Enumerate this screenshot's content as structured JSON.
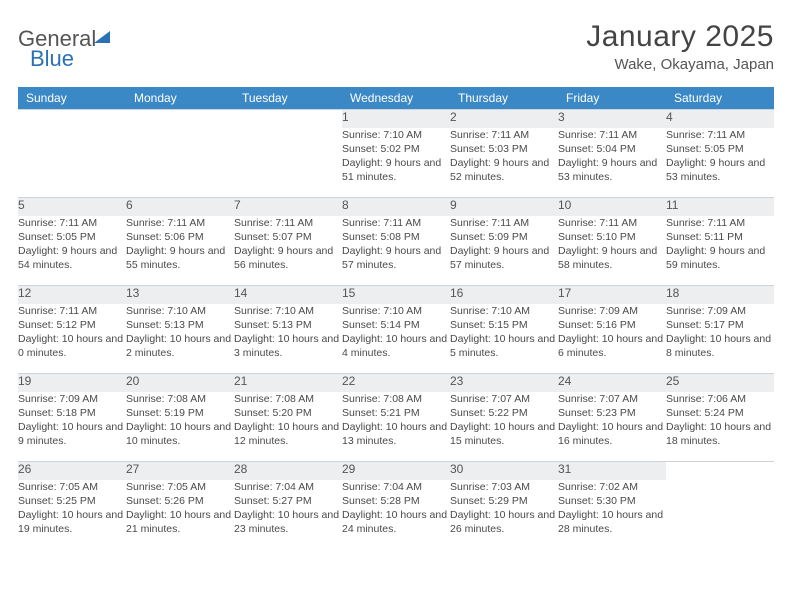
{
  "brand": {
    "word1": "General",
    "word2": "Blue"
  },
  "title": "January 2025",
  "location": "Wake, Okayama, Japan",
  "columns": [
    "Sunday",
    "Monday",
    "Tuesday",
    "Wednesday",
    "Thursday",
    "Friday",
    "Saturday"
  ],
  "style": {
    "header_bg": "#3b88c7",
    "header_fg": "#ffffff",
    "daynum_bg": "#eceef0",
    "text_color": "#4a4a4a",
    "title_fontsize": 30,
    "location_fontsize": 15,
    "header_fontsize": 12,
    "cell_fontsize": 10.5
  },
  "weeks": [
    [
      null,
      null,
      null,
      {
        "n": "1",
        "sr": "7:10 AM",
        "ss": "5:02 PM",
        "dl": "9 hours and 51 minutes."
      },
      {
        "n": "2",
        "sr": "7:11 AM",
        "ss": "5:03 PM",
        "dl": "9 hours and 52 minutes."
      },
      {
        "n": "3",
        "sr": "7:11 AM",
        "ss": "5:04 PM",
        "dl": "9 hours and 53 minutes."
      },
      {
        "n": "4",
        "sr": "7:11 AM",
        "ss": "5:05 PM",
        "dl": "9 hours and 53 minutes."
      }
    ],
    [
      {
        "n": "5",
        "sr": "7:11 AM",
        "ss": "5:05 PM",
        "dl": "9 hours and 54 minutes."
      },
      {
        "n": "6",
        "sr": "7:11 AM",
        "ss": "5:06 PM",
        "dl": "9 hours and 55 minutes."
      },
      {
        "n": "7",
        "sr": "7:11 AM",
        "ss": "5:07 PM",
        "dl": "9 hours and 56 minutes."
      },
      {
        "n": "8",
        "sr": "7:11 AM",
        "ss": "5:08 PM",
        "dl": "9 hours and 57 minutes."
      },
      {
        "n": "9",
        "sr": "7:11 AM",
        "ss": "5:09 PM",
        "dl": "9 hours and 57 minutes."
      },
      {
        "n": "10",
        "sr": "7:11 AM",
        "ss": "5:10 PM",
        "dl": "9 hours and 58 minutes."
      },
      {
        "n": "11",
        "sr": "7:11 AM",
        "ss": "5:11 PM",
        "dl": "9 hours and 59 minutes."
      }
    ],
    [
      {
        "n": "12",
        "sr": "7:11 AM",
        "ss": "5:12 PM",
        "dl": "10 hours and 0 minutes."
      },
      {
        "n": "13",
        "sr": "7:10 AM",
        "ss": "5:13 PM",
        "dl": "10 hours and 2 minutes."
      },
      {
        "n": "14",
        "sr": "7:10 AM",
        "ss": "5:13 PM",
        "dl": "10 hours and 3 minutes."
      },
      {
        "n": "15",
        "sr": "7:10 AM",
        "ss": "5:14 PM",
        "dl": "10 hours and 4 minutes."
      },
      {
        "n": "16",
        "sr": "7:10 AM",
        "ss": "5:15 PM",
        "dl": "10 hours and 5 minutes."
      },
      {
        "n": "17",
        "sr": "7:09 AM",
        "ss": "5:16 PM",
        "dl": "10 hours and 6 minutes."
      },
      {
        "n": "18",
        "sr": "7:09 AM",
        "ss": "5:17 PM",
        "dl": "10 hours and 8 minutes."
      }
    ],
    [
      {
        "n": "19",
        "sr": "7:09 AM",
        "ss": "5:18 PM",
        "dl": "10 hours and 9 minutes."
      },
      {
        "n": "20",
        "sr": "7:08 AM",
        "ss": "5:19 PM",
        "dl": "10 hours and 10 minutes."
      },
      {
        "n": "21",
        "sr": "7:08 AM",
        "ss": "5:20 PM",
        "dl": "10 hours and 12 minutes."
      },
      {
        "n": "22",
        "sr": "7:08 AM",
        "ss": "5:21 PM",
        "dl": "10 hours and 13 minutes."
      },
      {
        "n": "23",
        "sr": "7:07 AM",
        "ss": "5:22 PM",
        "dl": "10 hours and 15 minutes."
      },
      {
        "n": "24",
        "sr": "7:07 AM",
        "ss": "5:23 PM",
        "dl": "10 hours and 16 minutes."
      },
      {
        "n": "25",
        "sr": "7:06 AM",
        "ss": "5:24 PM",
        "dl": "10 hours and 18 minutes."
      }
    ],
    [
      {
        "n": "26",
        "sr": "7:05 AM",
        "ss": "5:25 PM",
        "dl": "10 hours and 19 minutes."
      },
      {
        "n": "27",
        "sr": "7:05 AM",
        "ss": "5:26 PM",
        "dl": "10 hours and 21 minutes."
      },
      {
        "n": "28",
        "sr": "7:04 AM",
        "ss": "5:27 PM",
        "dl": "10 hours and 23 minutes."
      },
      {
        "n": "29",
        "sr": "7:04 AM",
        "ss": "5:28 PM",
        "dl": "10 hours and 24 minutes."
      },
      {
        "n": "30",
        "sr": "7:03 AM",
        "ss": "5:29 PM",
        "dl": "10 hours and 26 minutes."
      },
      {
        "n": "31",
        "sr": "7:02 AM",
        "ss": "5:30 PM",
        "dl": "10 hours and 28 minutes."
      },
      null
    ]
  ],
  "labels": {
    "sunrise": "Sunrise: ",
    "sunset": "Sunset: ",
    "daylight": "Daylight: "
  }
}
